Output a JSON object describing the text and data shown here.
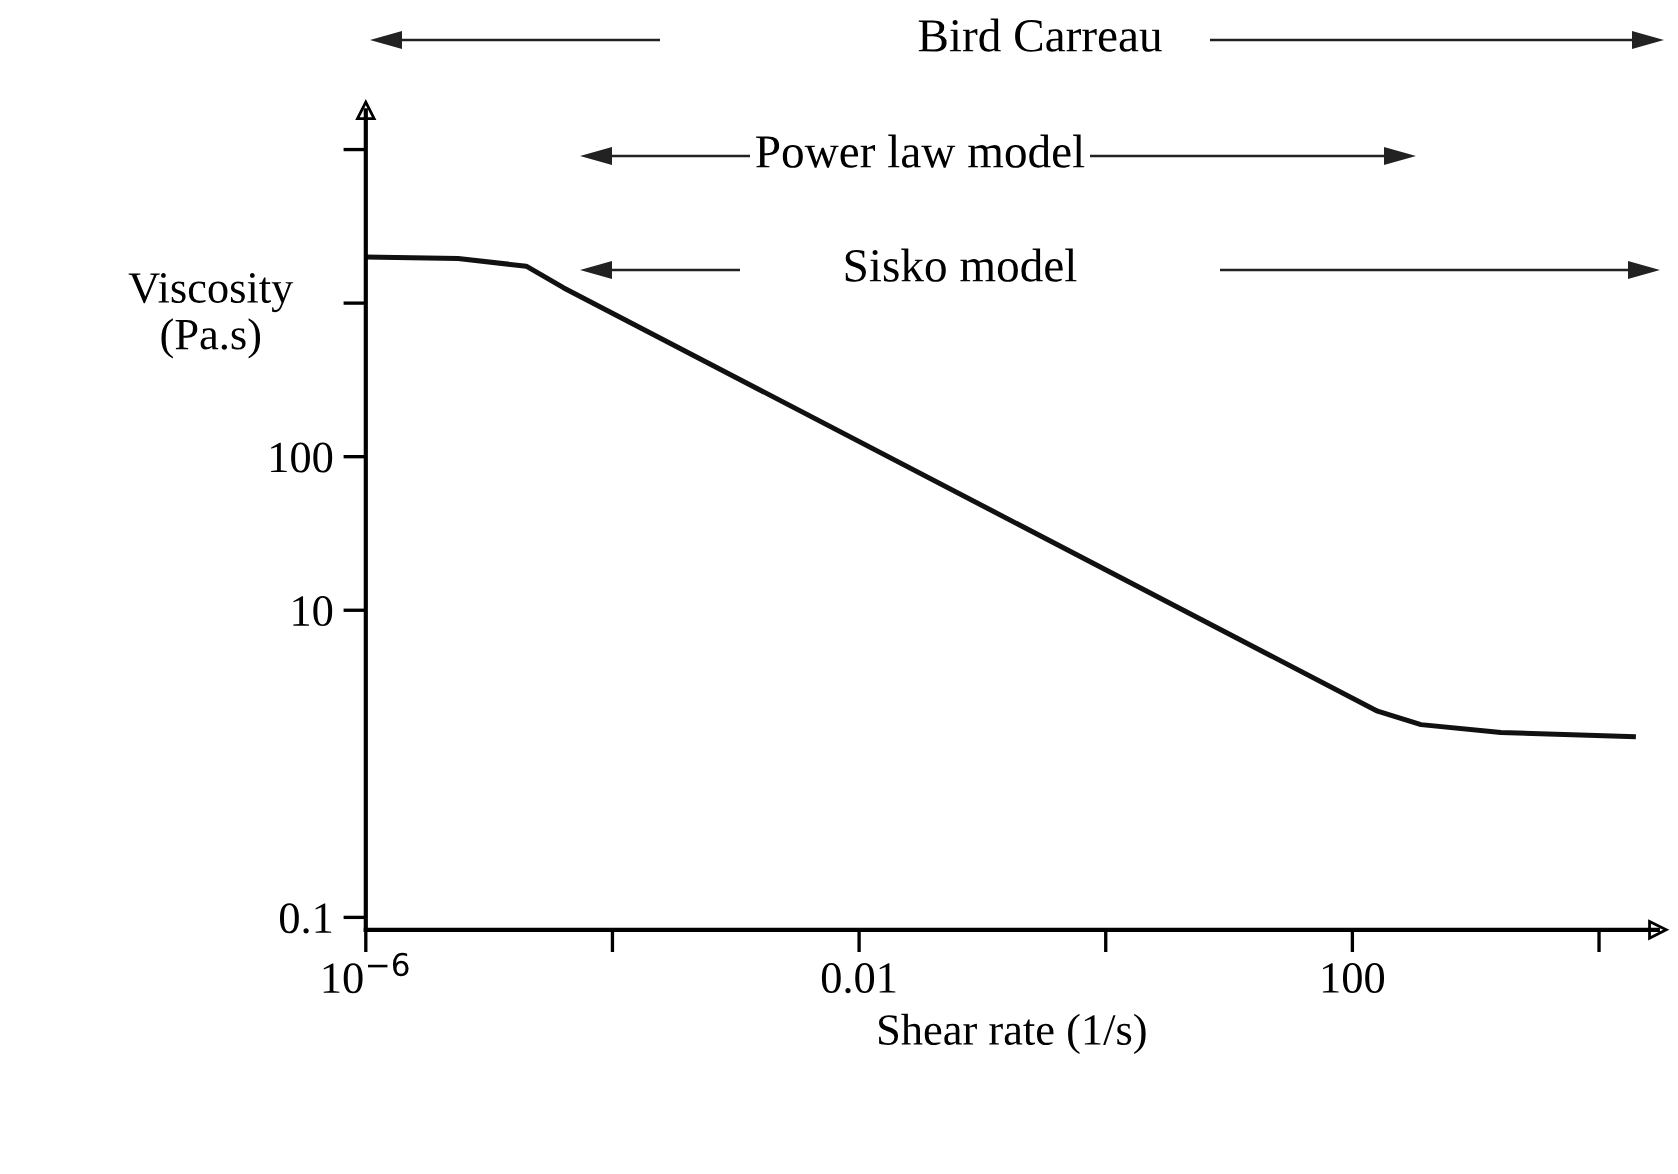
{
  "chart_data": {
    "type": "line",
    "xlabel": "Shear rate (1/s)",
    "ylabel": "Viscosity\n(Pa.s)",
    "log": "xy",
    "grid": false,
    "legend": false,
    "marker": "none",
    "line_style": "solid",
    "x": [
      1e-06,
      5.6e-06,
      2e-05,
      4e-05,
      160,
      360,
      1600,
      19000
    ],
    "series": [
      {
        "color": "#111111",
        "values": [
          2000,
          1950,
          1740,
          1260,
          2.2,
          1.8,
          1.6,
          1.5
        ]
      }
    ],
    "xlim": [
      1e-06,
      30000
    ],
    "xticks": [
      {
        "value": 1e-06,
        "label": "10$^{−6}$"
      },
      {
        "value": 0.0001,
        "label": null
      },
      0.01,
      {
        "value": 1,
        "label": null
      },
      100,
      {
        "value": 10000,
        "label": null
      }
    ],
    "ylim": [
      0.083,
      18000
    ],
    "yticks": [
      0.1,
      10,
      100,
      {
        "value": 1000,
        "label": null
      },
      {
        "value": 10000,
        "label": null
      }
    ],
    "annotations": [
      "Bird Carreau",
      "Power law model",
      "Sisko model"
    ]
  }
}
